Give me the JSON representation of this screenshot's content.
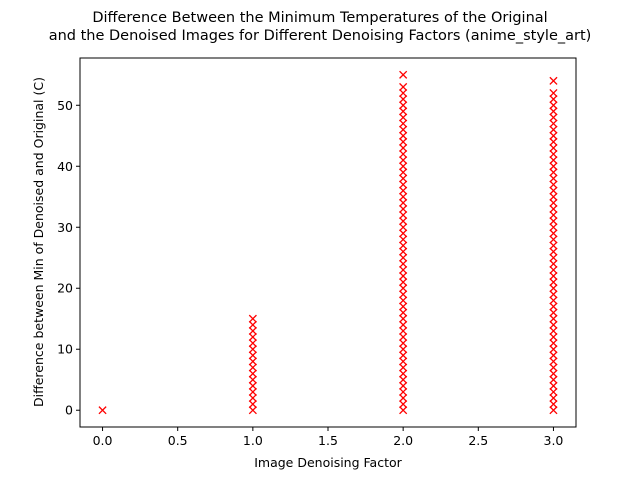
{
  "chart_data": {
    "type": "scatter",
    "title_lines": [
      "Difference Between the Minimum Temperatures of the Original",
      "and the Denoised Images for Different Denoising Factors (anime_style_art)"
    ],
    "xlabel": "Image Denoising Factor",
    "ylabel": "Difference between Min of Denoised and Original (C)",
    "xlim": [
      -0.15,
      3.15
    ],
    "ylim": [
      -2.75,
      57.75
    ],
    "xticks": [
      0.0,
      0.5,
      1.0,
      1.5,
      2.0,
      2.5,
      3.0
    ],
    "xtick_labels": [
      "0.0",
      "0.5",
      "1.0",
      "1.5",
      "2.0",
      "2.5",
      "3.0"
    ],
    "yticks": [
      0,
      10,
      20,
      30,
      40,
      50
    ],
    "ytick_labels": [
      "0",
      "10",
      "20",
      "30",
      "40",
      "50"
    ],
    "grid": false,
    "marker": "x",
    "marker_color": "#ff0000",
    "series": [
      {
        "x": 0,
        "values": [
          0
        ]
      },
      {
        "x": 1,
        "values": [
          0,
          1,
          2,
          3,
          4,
          5,
          6,
          7,
          8,
          9,
          10,
          11,
          12,
          13,
          14,
          15
        ]
      },
      {
        "x": 2,
        "values": [
          0,
          1,
          2,
          3,
          4,
          5,
          6,
          7,
          8,
          9,
          10,
          11,
          12,
          13,
          14,
          15,
          16,
          17,
          18,
          19,
          20,
          21,
          22,
          23,
          24,
          25,
          26,
          27,
          28,
          29,
          30,
          31,
          32,
          33,
          34,
          35,
          36,
          37,
          38,
          39,
          40,
          41,
          42,
          43,
          44,
          45,
          46,
          47,
          48,
          49,
          50,
          51,
          52,
          53,
          55
        ]
      },
      {
        "x": 3,
        "values": [
          0,
          1,
          2,
          3,
          4,
          5,
          6,
          7,
          8,
          9,
          10,
          11,
          12,
          13,
          14,
          15,
          16,
          17,
          18,
          19,
          20,
          21,
          22,
          23,
          24,
          25,
          26,
          27,
          28,
          29,
          30,
          31,
          32,
          33,
          34,
          35,
          36,
          37,
          38,
          39,
          40,
          41,
          42,
          43,
          44,
          45,
          46,
          47,
          48,
          49,
          50,
          51,
          52,
          54
        ]
      }
    ]
  }
}
